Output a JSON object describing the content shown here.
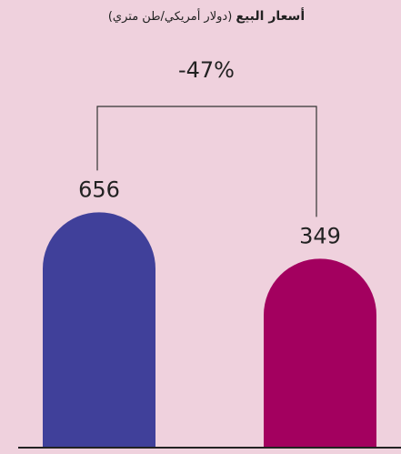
{
  "chart_data": {
    "type": "bar",
    "title": "أسعار البيع",
    "subtitle": "(دولار أمريكي/طن متري)",
    "annotation": "-47%",
    "categories": [
      null,
      null
    ],
    "values": [
      656,
      349
    ],
    "colors": [
      "#40409a",
      "#a3005f"
    ],
    "ylim": [
      -900,
      700
    ]
  }
}
